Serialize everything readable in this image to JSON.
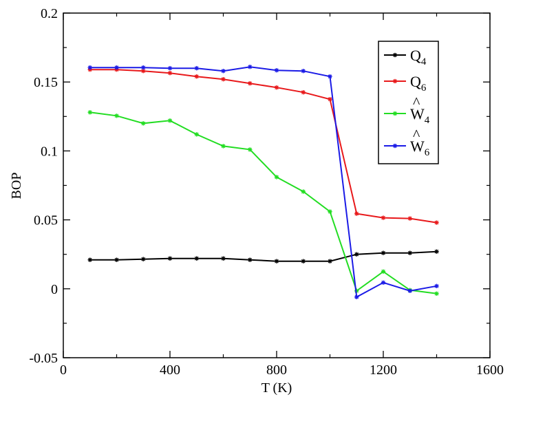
{
  "chart_data": {
    "type": "line",
    "xlabel": "T (K)",
    "ylabel": "BOP",
    "xlim": [
      0,
      1600
    ],
    "ylim": [
      -0.05,
      0.2
    ],
    "x_ticks": [
      "0",
      "400",
      "800",
      "1200",
      "1600"
    ],
    "y_ticks": [
      "-0.05",
      "0",
      "0.05",
      "0.1",
      "0.15",
      "0.2"
    ],
    "x_tick_values": [
      0,
      400,
      800,
      1200,
      1600
    ],
    "y_tick_values": [
      -0.05,
      0,
      0.05,
      0.1,
      0.15,
      0.2
    ],
    "x_minor_step": 200,
    "y_minor_step": 0.025,
    "grid": false,
    "legend_position": "top-right",
    "x": [
      100,
      200,
      300,
      400,
      500,
      600,
      700,
      800,
      900,
      1000,
      1100,
      1200,
      1300,
      1400
    ],
    "series": [
      {
        "label": "Q",
        "sub": "4",
        "hat": false,
        "color": "#000000",
        "values": [
          0.021,
          0.021,
          0.0215,
          0.022,
          0.022,
          0.022,
          0.021,
          0.02,
          0.02,
          0.02,
          0.025,
          0.026,
          0.026,
          0.027
        ]
      },
      {
        "label": "Q",
        "sub": "6",
        "hat": false,
        "color": "#e8181a",
        "values": [
          0.159,
          0.159,
          0.158,
          0.1565,
          0.154,
          0.152,
          0.149,
          0.146,
          0.1425,
          0.1375,
          0.0545,
          0.0515,
          0.051,
          0.048
        ]
      },
      {
        "label": "W",
        "sub": "4",
        "hat": true,
        "color": "#22dd22",
        "values": [
          0.128,
          0.1255,
          0.12,
          0.122,
          0.112,
          0.1035,
          0.101,
          0.081,
          0.0705,
          0.056,
          -0.0015,
          0.0125,
          -0.001,
          -0.0035
        ]
      },
      {
        "label": "W",
        "sub": "6",
        "hat": true,
        "color": "#1a1ae6",
        "values": [
          0.1605,
          0.1605,
          0.1605,
          0.16,
          0.16,
          0.158,
          0.161,
          0.1585,
          0.158,
          0.154,
          -0.006,
          0.0045,
          -0.0015,
          0.002
        ]
      }
    ]
  }
}
